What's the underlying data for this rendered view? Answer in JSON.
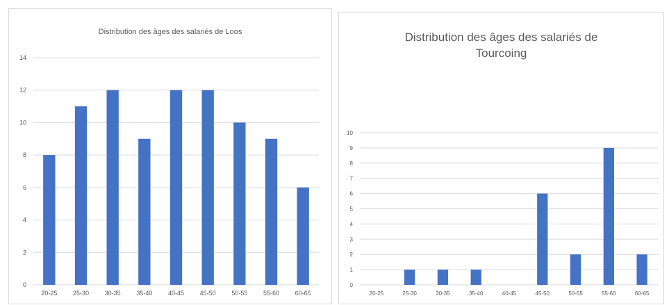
{
  "charts": [
    {
      "id": "loos",
      "chart_data": {
        "type": "bar",
        "title": "Distribution des âges des salariés de Loos",
        "categories": [
          "20-25",
          "25-30",
          "30-35",
          "35-40",
          "40-45",
          "45-50",
          "50-55",
          "55-60",
          "60-65"
        ],
        "values": [
          8,
          11,
          12,
          9,
          12,
          12,
          10,
          9,
          6
        ],
        "ylim": [
          0,
          14
        ],
        "yticks": [
          0,
          2,
          4,
          6,
          8,
          10,
          12,
          14
        ],
        "grid": true,
        "legend": "none",
        "bar_color": "#4472c4"
      }
    },
    {
      "id": "tourcoing",
      "chart_data": {
        "type": "bar",
        "title": "Distribution des âges des salariés de Tourcoing",
        "categories": [
          "20-25",
          "25-30",
          "30-35",
          "35-40",
          "40-45",
          "45-50",
          "50-55",
          "55-60",
          "60-65"
        ],
        "values": [
          0,
          1,
          1,
          1,
          0,
          6,
          2,
          9,
          2
        ],
        "ylim": [
          0,
          10
        ],
        "yticks": [
          0,
          1,
          2,
          3,
          4,
          5,
          6,
          7,
          8,
          9,
          10
        ],
        "grid": true,
        "legend": "none",
        "bar_color": "#4472c4"
      }
    }
  ]
}
